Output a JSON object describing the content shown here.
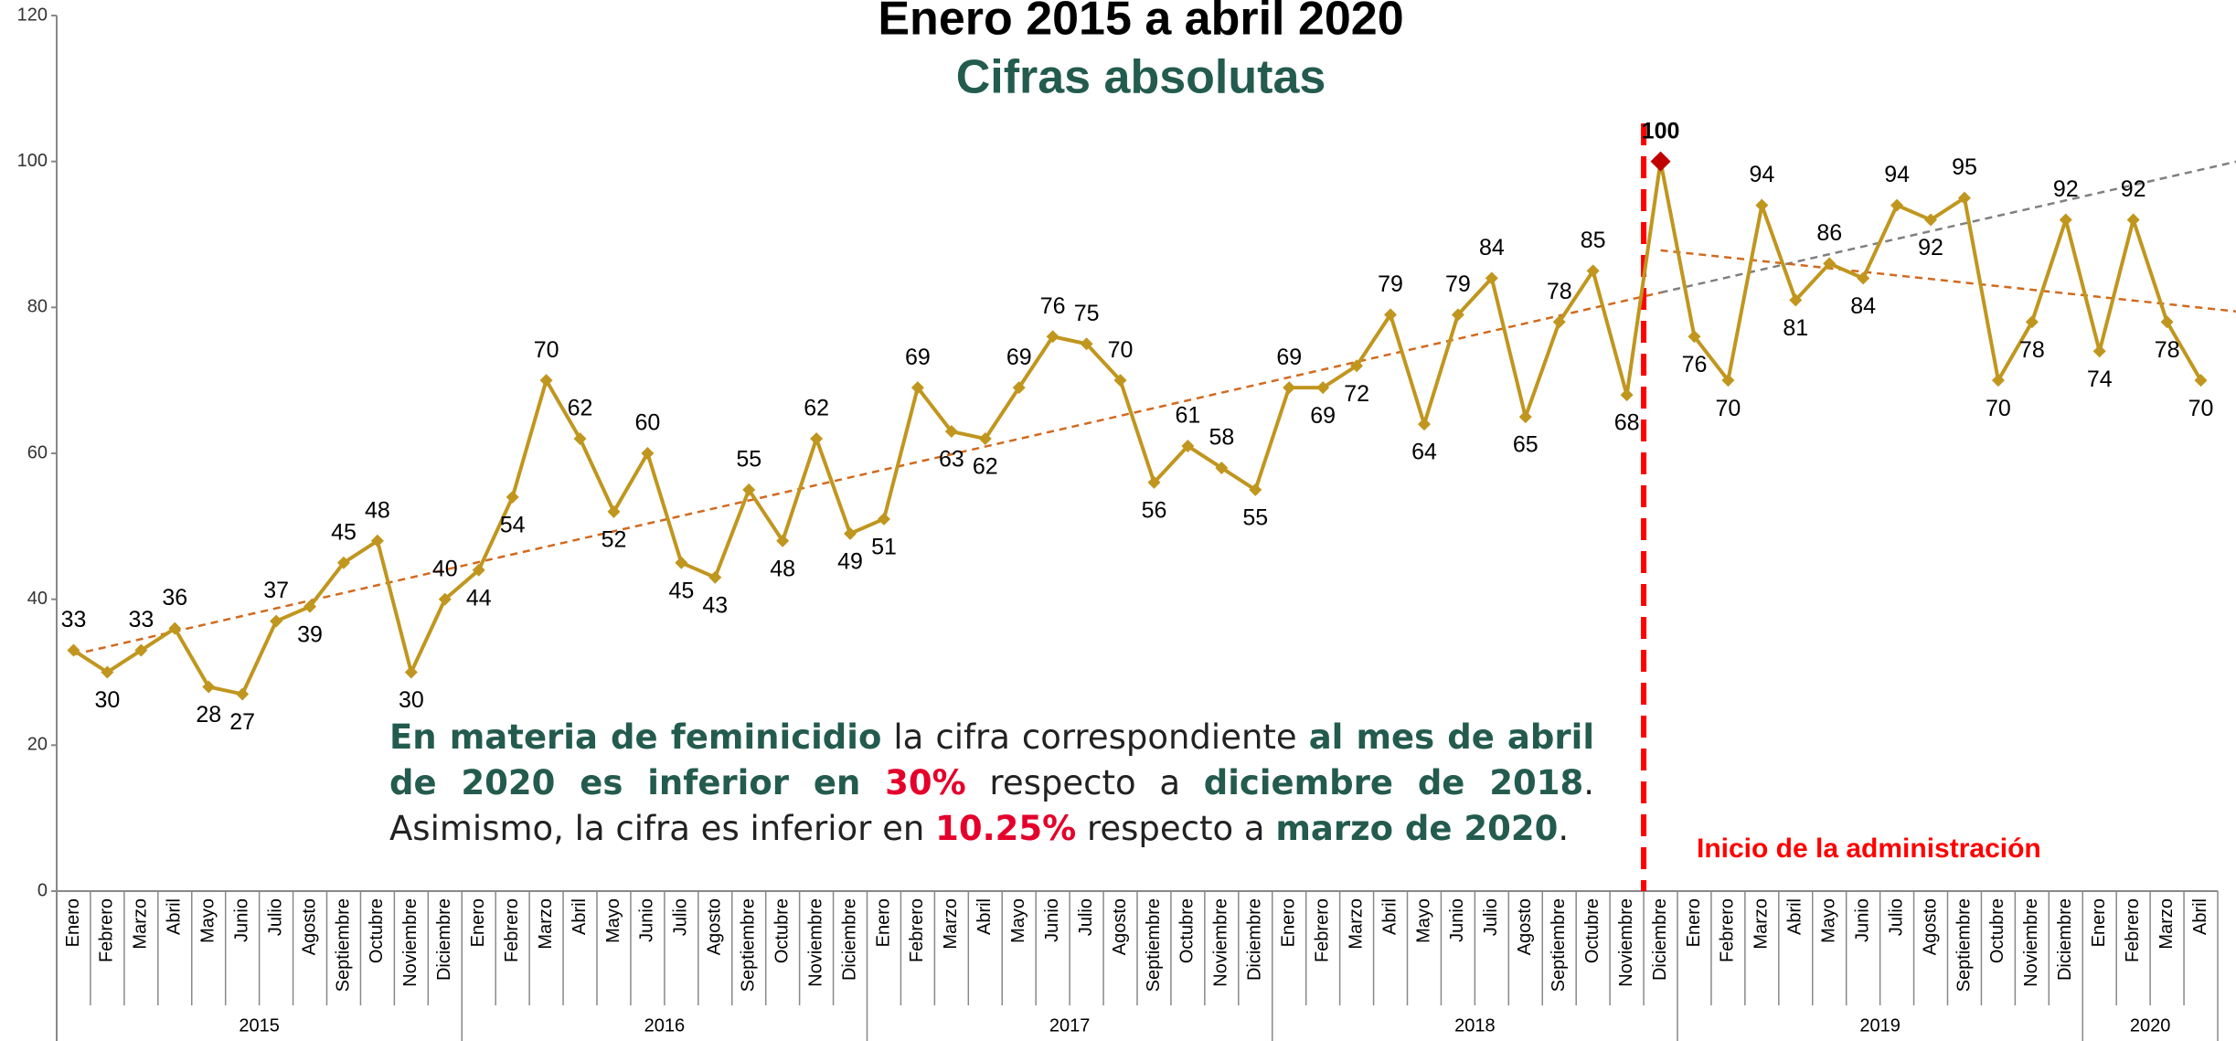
{
  "chart_data": {
    "type": "line",
    "title": "Enero 2015 a abril 2020",
    "subtitle": "Cifras absolutas",
    "categories": [
      "Enero",
      "Febrero",
      "Marzo",
      "Abril",
      "Mayo",
      "Junio",
      "Julio",
      "Agosto",
      "Septiembre",
      "Octubre",
      "Noviembre",
      "Diciembre",
      "Enero",
      "Febrero",
      "Marzo",
      "Abril",
      "Mayo",
      "Junio",
      "Julio",
      "Agosto",
      "Septiembre",
      "Octubre",
      "Noviembre",
      "Diciembre",
      "Enero",
      "Febrero",
      "Marzo",
      "Abril",
      "Mayo",
      "Junio",
      "Julio",
      "Agosto",
      "Septiembre",
      "Octubre",
      "Noviembre",
      "Diciembre",
      "Enero",
      "Febrero",
      "Marzo",
      "Abril",
      "Mayo",
      "Junio",
      "Julio",
      "Agosto",
      "Septiembre",
      "Octubre",
      "Noviembre",
      "Diciembre",
      "Enero",
      "Febrero",
      "Marzo",
      "Abril",
      "Mayo",
      "Junio",
      "Julio",
      "Agosto",
      "Septiembre",
      "Octubre",
      "Noviembre",
      "Diciembre",
      "Enero",
      "Febrero",
      "Marzo",
      "Abril"
    ],
    "year_labels": [
      "2015",
      "2016",
      "2017",
      "2018",
      "2019",
      "2020"
    ],
    "series": [
      {
        "name": "Feminicidio",
        "color": "#c0961e",
        "values": [
          33,
          30,
          33,
          36,
          28,
          27,
          37,
          39,
          45,
          48,
          30,
          40,
          44,
          54,
          70,
          62,
          52,
          60,
          45,
          43,
          55,
          48,
          62,
          49,
          51,
          69,
          63,
          62,
          69,
          76,
          75,
          70,
          56,
          61,
          58,
          55,
          69,
          69,
          72,
          79,
          64,
          79,
          84,
          65,
          78,
          85,
          68,
          100,
          76,
          70,
          94,
          81,
          86,
          84,
          94,
          92,
          95,
          70,
          78,
          92,
          74,
          92,
          78,
          70
        ]
      }
    ],
    "highlight_color": "#c00000",
    "trend_color": "#d2691e",
    "trend_extension_color": "#808080",
    "admin_line_color": "#ff0000",
    "admin_label": "Inicio de la administración",
    "ylim": [
      0,
      120
    ],
    "yticks": [
      0,
      20,
      40,
      60,
      80,
      100,
      120
    ],
    "annotation": [
      {
        "text": "En materia de feminicidio",
        "style": "bold"
      },
      {
        "text": " la cifra correspondiente ",
        "style": "normal"
      },
      {
        "text": "al mes de abril de 2020 es inferior en",
        "style": "bold"
      },
      {
        "text": " 30%",
        "style": "red"
      },
      {
        "text": " respecto a ",
        "style": "normal"
      },
      {
        "text": "diciembre de 2018",
        "style": "bold"
      },
      {
        "text": ". Asimismo, la cifra es inferior en ",
        "style": "normal"
      },
      {
        "text": "10.25%",
        "style": "red"
      },
      {
        "text": " respecto a ",
        "style": "normal"
      },
      {
        "text": "marzo de 2020",
        "style": "bold"
      },
      {
        "text": ".",
        "style": "normal"
      }
    ]
  }
}
